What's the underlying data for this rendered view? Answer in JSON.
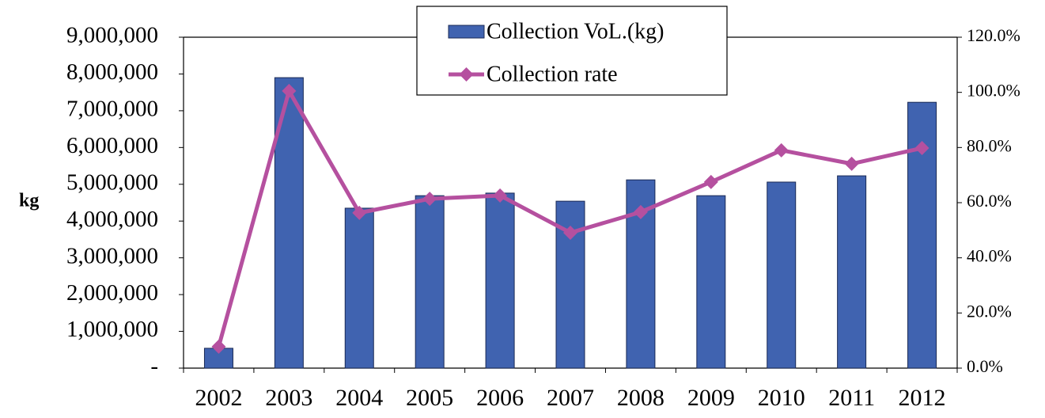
{
  "chart_data": {
    "type": "bar_line",
    "y_label": "kg",
    "categories": [
      "2002",
      "2003",
      "2004",
      "2005",
      "2006",
      "2007",
      "2008",
      "2009",
      "2010",
      "2011",
      "2012"
    ],
    "series": [
      {
        "name": "Collection VoL.(kg)",
        "type": "bar",
        "color": "#4063b0",
        "values": [
          540000,
          7900000,
          4350000,
          4690000,
          4760000,
          4540000,
          5120000,
          4690000,
          5060000,
          5230000,
          7230000
        ]
      },
      {
        "name": "Collection rate",
        "type": "line",
        "axis": "y2",
        "color": "#b5509f",
        "values": [
          7.8,
          100.5,
          56.3,
          61.4,
          62.6,
          49.1,
          56.6,
          67.5,
          79.0,
          74.1,
          79.8
        ]
      }
    ],
    "ylim": [
      0,
      9000000
    ],
    "yticks": [
      {
        "value": 0,
        "label": "-"
      },
      {
        "value": 1000000,
        "label": "1,000,000"
      },
      {
        "value": 2000000,
        "label": "2,000,000"
      },
      {
        "value": 3000000,
        "label": "3,000,000"
      },
      {
        "value": 4000000,
        "label": "4,000,000"
      },
      {
        "value": 5000000,
        "label": "5,000,000"
      },
      {
        "value": 6000000,
        "label": "6,000,000"
      },
      {
        "value": 7000000,
        "label": "7,000,000"
      },
      {
        "value": 8000000,
        "label": "8,000,000"
      },
      {
        "value": 9000000,
        "label": "9,000,000"
      }
    ],
    "y2lim": [
      0,
      120
    ],
    "y2ticks": [
      {
        "value": 0,
        "label": "0.0%"
      },
      {
        "value": 20,
        "label": "20.0%"
      },
      {
        "value": 40,
        "label": "40.0%"
      },
      {
        "value": 60,
        "label": "60.0%"
      },
      {
        "value": 80,
        "label": "80.0%"
      },
      {
        "value": 100,
        "label": "100.0%"
      },
      {
        "value": 120,
        "label": "120.0%"
      }
    ],
    "legend": "top"
  }
}
